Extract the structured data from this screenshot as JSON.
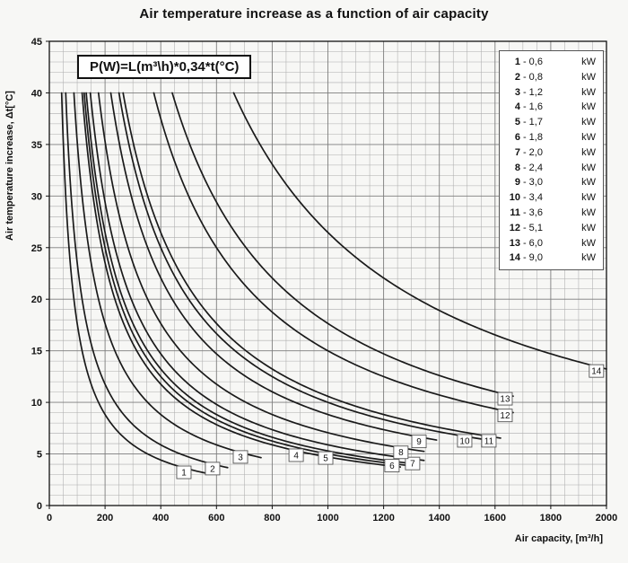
{
  "title": "Air temperature increase as a function of air capacity",
  "formula": "P(W)=L(m³\\h)*0,34*t(°C)",
  "axes": {
    "x_label": "Air capacity, [m³/h]",
    "y_label": "Air temperature increase, Δt[°C]",
    "x_ticks": [
      0,
      200,
      400,
      600,
      800,
      1000,
      1200,
      1400,
      1600,
      1800,
      2000
    ],
    "y_ticks": [
      0,
      5,
      10,
      15,
      20,
      25,
      30,
      35,
      40,
      45
    ]
  },
  "chart_data": {
    "type": "line",
    "title": "Air temperature increase as a function of air capacity",
    "xlabel": "Air capacity, [m³/h]",
    "ylabel": "Air temperature increase, Δt[°C]",
    "x_range": [
      0,
      2000
    ],
    "y_range": [
      0,
      45
    ],
    "x_major_step": 200,
    "x_minor_step": 50,
    "y_major_step": 5,
    "y_minor_step": 1,
    "grid": "on",
    "legend_position": "top-right-inside",
    "legend_unit": "kW",
    "model": "t = P(W) / (0.34 * L(m3/h)), curves clipped at t = 40",
    "curve_t_max": 40,
    "series": [
      {
        "id": 1,
        "power_kw": 0.6,
        "legend_value": "0,6",
        "x_end": 560,
        "label_x": 483
      },
      {
        "id": 2,
        "power_kw": 0.8,
        "legend_value": "0,8",
        "x_end": 640,
        "label_x": 586
      },
      {
        "id": 3,
        "power_kw": 1.2,
        "legend_value": "1,2",
        "x_end": 760,
        "label_x": 686
      },
      {
        "id": 4,
        "power_kw": 1.6,
        "legend_value": "1,6",
        "x_end": 1260,
        "label_x": 886
      },
      {
        "id": 5,
        "power_kw": 1.7,
        "legend_value": "1,7",
        "x_end": 1300,
        "label_x": 992
      },
      {
        "id": 6,
        "power_kw": 1.8,
        "legend_value": "1,8",
        "x_end": 1290,
        "label_x": 1230
      },
      {
        "id": 7,
        "power_kw": 2.0,
        "legend_value": "2,0",
        "x_end": 1345,
        "label_x": 1304
      },
      {
        "id": 8,
        "power_kw": 2.4,
        "legend_value": "2,4",
        "x_end": 1345,
        "label_x": 1262
      },
      {
        "id": 9,
        "power_kw": 3.0,
        "legend_value": "3,0",
        "x_end": 1390,
        "label_x": 1327
      },
      {
        "id": 10,
        "power_kw": 3.4,
        "legend_value": "3,4",
        "x_end": 1560,
        "label_x": 1491
      },
      {
        "id": 11,
        "power_kw": 3.6,
        "legend_value": "3,6",
        "x_end": 1620,
        "label_x": 1578
      },
      {
        "id": 12,
        "power_kw": 5.1,
        "legend_value": "5,1",
        "x_end": 1665,
        "label_x": 1636
      },
      {
        "id": 13,
        "power_kw": 6.0,
        "legend_value": "6,0",
        "x_end": 1665,
        "label_x": 1636
      },
      {
        "id": 14,
        "power_kw": 9.0,
        "legend_value": "9,0",
        "x_end": 2000,
        "label_x": 1964
      }
    ]
  },
  "colors": {
    "background": "#f7f7f5",
    "curve": "#1a1a1a",
    "grid_minor": "#adadad",
    "grid_major": "#7d7d7d",
    "border": "#111111",
    "box_bg": "#ffffff",
    "text": "#111111"
  }
}
